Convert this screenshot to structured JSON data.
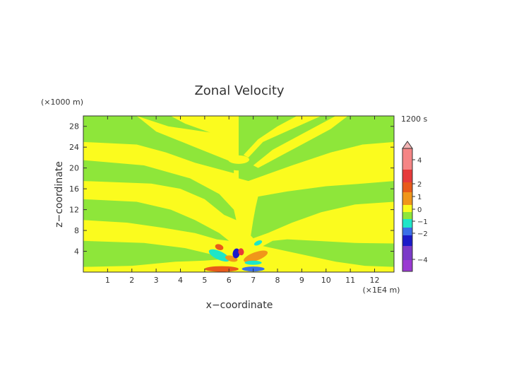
{
  "chart_data": {
    "type": "heatmap",
    "title": "Zonal Velocity",
    "xlabel": "x−coordinate",
    "ylabel": "z−coordinate",
    "x_unit": "(×1E4 m)",
    "y_unit": "(×1000 m)",
    "time_label": "1200 s",
    "xlim": [
      0,
      12.8
    ],
    "ylim": [
      0,
      30
    ],
    "x_ticks": [
      "1",
      "2",
      "3",
      "4",
      "5",
      "6",
      "7",
      "8",
      "9",
      "10",
      "11",
      "12"
    ],
    "y_ticks": [
      "4",
      "8",
      "12",
      "16",
      "20",
      "24",
      "28"
    ],
    "colorbar": {
      "labels": [
        "4",
        "2",
        "1",
        "0",
        "−1",
        "−2",
        "−4"
      ],
      "colors": {
        "over": "#f2b3b3",
        "c4": "#f58585",
        "c3": "#e63a3a",
        "c2": "#e85a1a",
        "c1": "#f0961a",
        "c0": "#fbfb1e",
        "cm0": "#8ee63a",
        "cm1": "#1ee6c8",
        "cm2": "#3a6ee8",
        "cm3": "#1a1ac8",
        "cm4": "#7a3ac8",
        "under": "#9a3ad2"
      }
    },
    "background_colors": {
      "positive": "#fbfb1e",
      "negative": "#8ee63a"
    }
  }
}
